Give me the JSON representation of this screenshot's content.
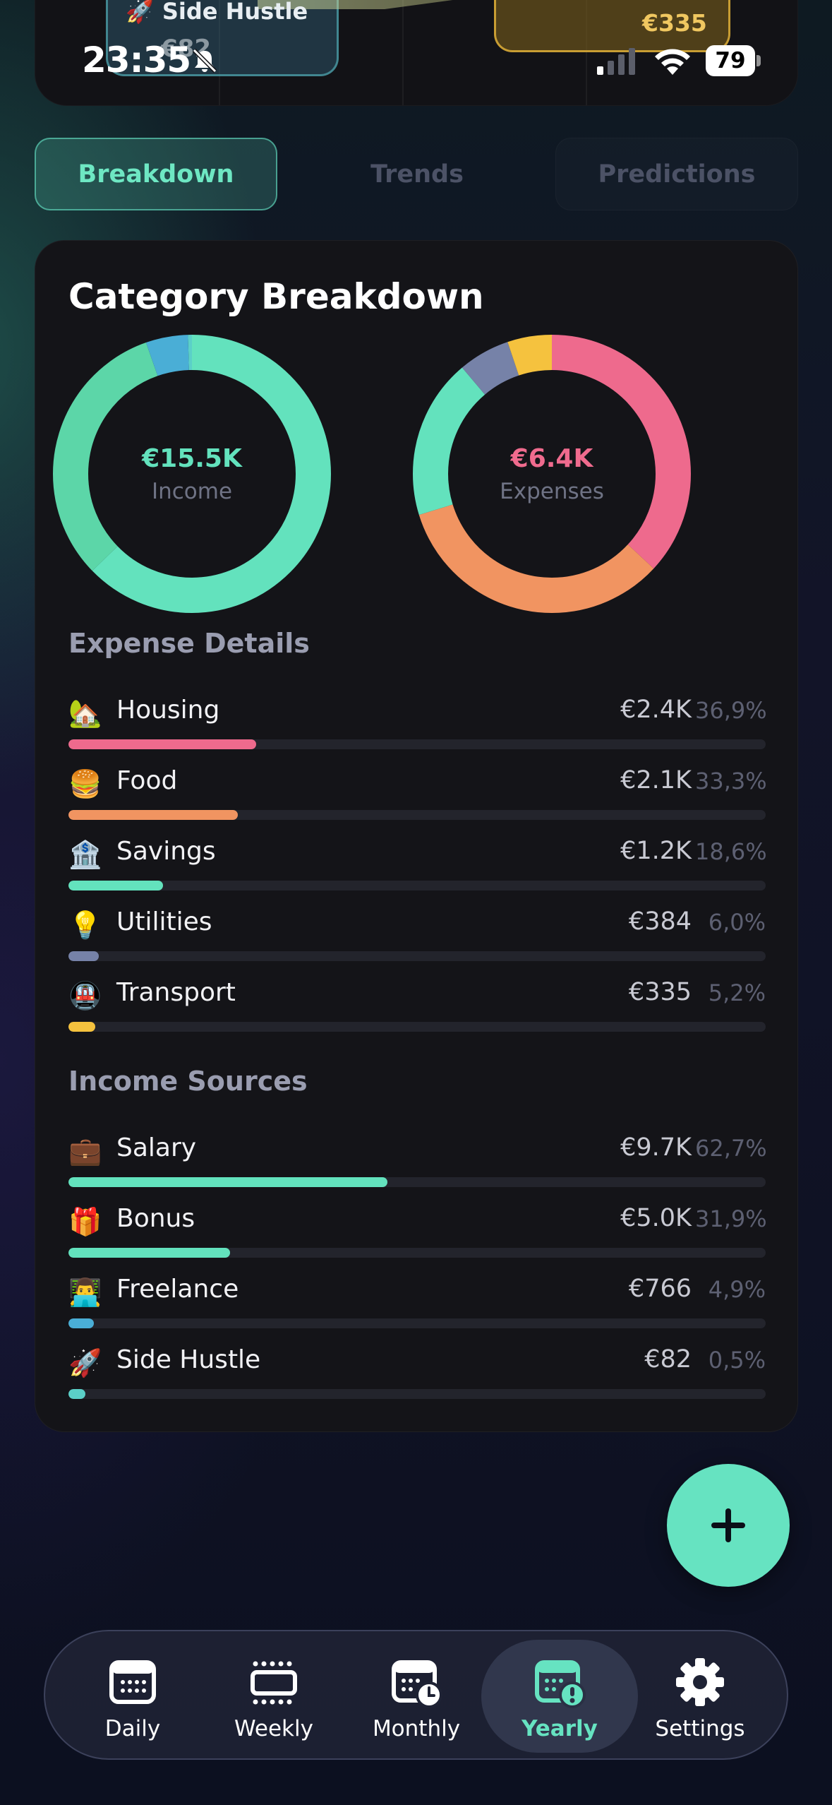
{
  "status_bar": {
    "time": "23:35",
    "battery": "79"
  },
  "sankey": {
    "left_label": "Side Hustle",
    "left_emoji": "🚀",
    "left_value": "€82",
    "right_value": "€335"
  },
  "tabs": [
    {
      "label": "Breakdown",
      "active": true
    },
    {
      "label": "Trends",
      "active": false
    },
    {
      "label": "Predictions",
      "active": false
    }
  ],
  "card": {
    "title": "Category Breakdown",
    "income_donut": {
      "value": "€15.5K",
      "label": "Income"
    },
    "expense_donut": {
      "value": "€6.4K",
      "label": "Expenses"
    },
    "expense_section_title": "Expense Details",
    "income_section_title": "Income Sources"
  },
  "expenses": [
    {
      "emoji": "🏡",
      "label": "Housing",
      "amount": "€2.4K",
      "pct": "36,9%",
      "fraction": 0.269,
      "color": "#ee6a8d"
    },
    {
      "emoji": "🍔",
      "label": "Food",
      "amount": "€2.1K",
      "pct": "33,3%",
      "fraction": 0.243,
      "color": "#f19461"
    },
    {
      "emoji": "🏦",
      "label": "Savings",
      "amount": "€1.2K",
      "pct": "18,6%",
      "fraction": 0.136,
      "color": "#63e2bd"
    },
    {
      "emoji": "💡",
      "label": "Utilities",
      "amount": "€384",
      "pct": "6,0%",
      "fraction": 0.044,
      "color": "#7682a8"
    },
    {
      "emoji": "🚇",
      "label": "Transport",
      "amount": "€335",
      "pct": "5,2%",
      "fraction": 0.038,
      "color": "#f5c23e"
    }
  ],
  "income": [
    {
      "emoji": "💼",
      "label": "Salary",
      "amount": "€9.7K",
      "pct": "62,7%",
      "fraction": 0.457,
      "color": "#63e2bd"
    },
    {
      "emoji": "🎁",
      "label": "Bonus",
      "amount": "€5.0K",
      "pct": "31,9%",
      "fraction": 0.232,
      "color": "#63e2bd"
    },
    {
      "emoji": "👨‍💻",
      "label": "Freelance",
      "amount": "€766",
      "pct": "4,9%",
      "fraction": 0.036,
      "color": "#4aaed6"
    },
    {
      "emoji": "🚀",
      "label": "Side Hustle",
      "amount": "€82",
      "pct": "0,5%",
      "fraction": 0.024,
      "color": "#5bd0c8"
    }
  ],
  "donut_colors": {
    "income": [
      "#63e2bd",
      "#5cd6a8",
      "#4aaed6",
      "#5bd0c8"
    ],
    "expense": [
      "#ee6a8d",
      "#f19461",
      "#63e2bd",
      "#7682a8",
      "#f5c23e"
    ]
  },
  "nav": [
    {
      "label": "Daily",
      "icon": "calendar-icon",
      "active": false
    },
    {
      "label": "Weekly",
      "icon": "week-view-icon",
      "active": false
    },
    {
      "label": "Monthly",
      "icon": "calendar-clock-icon",
      "active": false
    },
    {
      "label": "Yearly",
      "icon": "calendar-alert-icon",
      "active": true
    },
    {
      "label": "Settings",
      "icon": "gear-icon",
      "active": false
    }
  ]
}
